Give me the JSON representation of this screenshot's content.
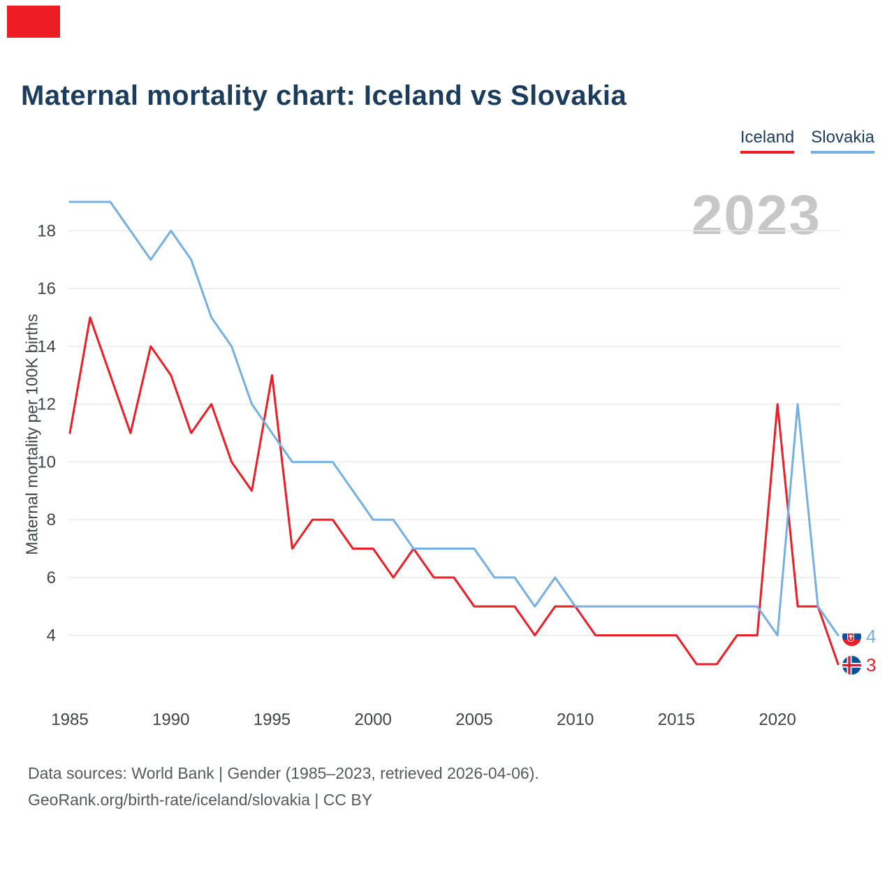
{
  "page": {
    "title": "Maternal mortality chart: Iceland vs Slovakia",
    "watermark": "2023",
    "footer_line1": "Data sources: World Bank | Gender (1985–2023, retrieved 2026-04-06).",
    "footer_line2": "GeoRank.org/birth-rate/iceland/slovakia | CC BY"
  },
  "legend": {
    "items": [
      {
        "label": "Iceland",
        "color": "#ee1c25"
      },
      {
        "label": "Slovakia",
        "color": "#74b0e4"
      }
    ]
  },
  "chart_data": {
    "type": "line",
    "title": "Maternal mortality chart: Iceland vs Slovakia",
    "xlabel": "",
    "ylabel": "Maternal mortality per 100K births",
    "x": [
      1985,
      1986,
      1987,
      1988,
      1989,
      1990,
      1991,
      1992,
      1993,
      1994,
      1995,
      1996,
      1997,
      1998,
      1999,
      2000,
      2001,
      2002,
      2003,
      2004,
      2005,
      2006,
      2007,
      2008,
      2009,
      2010,
      2011,
      2012,
      2013,
      2014,
      2015,
      2016,
      2017,
      2018,
      2019,
      2020,
      2021,
      2022,
      2023
    ],
    "series": [
      {
        "name": "Iceland",
        "color": "#ee1c25",
        "values": [
          11,
          15,
          13,
          11,
          14,
          13,
          11,
          12,
          10,
          9,
          13,
          7,
          8,
          8,
          7,
          7,
          6,
          7,
          6,
          6,
          5,
          5,
          5,
          4,
          5,
          5,
          4,
          4,
          4,
          4,
          4,
          3,
          3,
          4,
          4,
          12,
          5,
          5,
          3
        ]
      },
      {
        "name": "Slovakia",
        "color": "#74b0e4",
        "values": [
          19,
          19,
          19,
          18,
          17,
          18,
          17,
          15,
          14,
          12,
          11,
          10,
          10,
          10,
          9,
          8,
          8,
          7,
          7,
          7,
          7,
          6,
          6,
          5,
          6,
          5,
          5,
          5,
          5,
          5,
          5,
          5,
          5,
          5,
          5,
          4,
          12,
          5,
          4
        ]
      }
    ],
    "x_ticks": [
      1985,
      1990,
      1995,
      2000,
      2005,
      2010,
      2015,
      2020
    ],
    "y_ticks": [
      4,
      6,
      8,
      10,
      12,
      14,
      16,
      18
    ],
    "ylim": [
      3,
      19
    ],
    "grid": true,
    "grid_color": "#ebebeb",
    "legend_position": "top-right",
    "end_labels": [
      {
        "series": "Slovakia",
        "value": 4
      },
      {
        "series": "Iceland",
        "value": 3
      }
    ]
  }
}
